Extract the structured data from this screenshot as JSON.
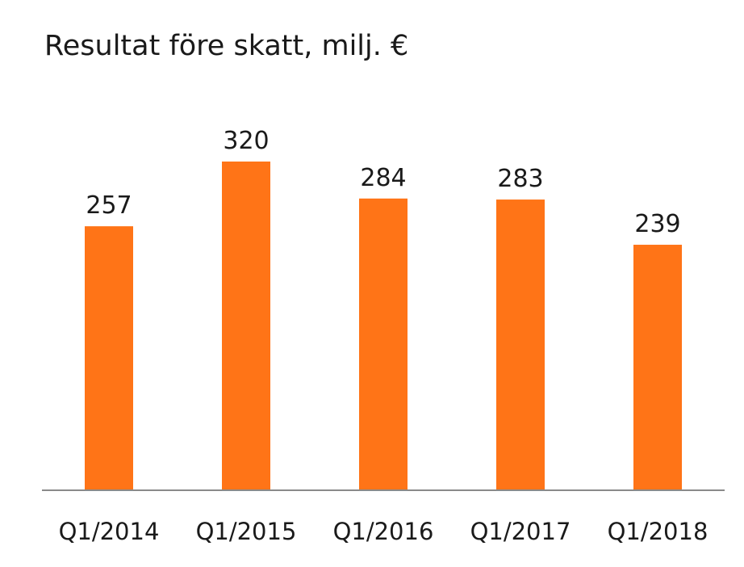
{
  "chart_data": {
    "type": "bar",
    "title": "Resultat före skatt, milj. €",
    "categories": [
      "Q1/2014",
      "Q1/2015",
      "Q1/2016",
      "Q1/2017",
      "Q1/2018"
    ],
    "values": [
      257,
      320,
      284,
      283,
      239
    ],
    "value_labels": [
      "257",
      "320",
      "284",
      "283",
      "239"
    ],
    "bar_color": "#ff7417",
    "ylim": [
      0,
      320
    ],
    "grid": false,
    "xlabel": "",
    "ylabel": ""
  }
}
